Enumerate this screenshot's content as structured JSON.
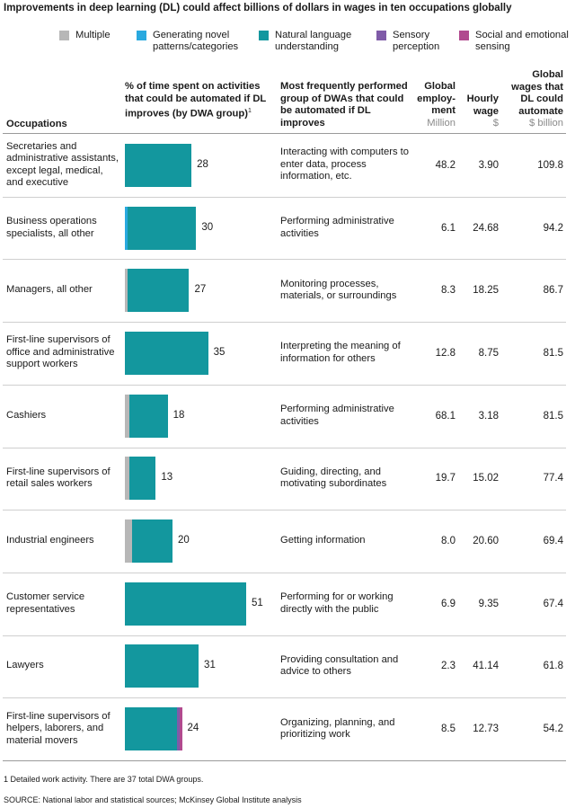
{
  "title": "Improvements in deep learning (DL) could affect billions of dollars in wages in ten occupations globally",
  "legend": [
    {
      "label": "Multiple",
      "color": "#b7b7b7"
    },
    {
      "label": "Generating novel patterns/categories",
      "color": "#29a9df"
    },
    {
      "label": "Natural language understanding",
      "color": "#13979e"
    },
    {
      "label": "Sensory perception",
      "color": "#7f5ba8"
    },
    {
      "label": "Social and emotional sensing",
      "color": "#b14a8f"
    }
  ],
  "columns": {
    "occupations": "Occupations",
    "pct_time": "% of time spent on activities that could be automated if DL improves (by DWA group)",
    "pct_time_sup": "1",
    "dwa": "Most frequently performed group of DWAs that could be automated if DL improves",
    "employment": "Global employ-ment",
    "employment_unit": "Million",
    "wage": "Hourly wage",
    "wage_unit": "$",
    "wages_total": "Global wages that DL could automate",
    "wages_total_unit": "$ billion"
  },
  "chart_data": {
    "type": "bar",
    "orientation": "horizontal",
    "stacked": true,
    "xlim": [
      0,
      51
    ],
    "categories": [
      "Secretaries and administrative assistants, except legal, medical, and executive",
      "Business operations specialists, all other",
      "Managers, all other",
      "First-line supervisors of office and administrative support workers",
      "Cashiers",
      "First-line supervisors of retail sales workers",
      "Industrial engineers",
      "Customer service representatives",
      "Lawyers",
      "First-line supervisors of helpers, laborers, and material movers"
    ],
    "series": [
      {
        "name": "Multiple",
        "values": [
          0,
          0,
          1,
          0,
          2,
          2,
          3,
          0,
          0,
          0
        ]
      },
      {
        "name": "Generating novel patterns/categories",
        "values": [
          0,
          1,
          0,
          0,
          0,
          0,
          0,
          0,
          0,
          0
        ]
      },
      {
        "name": "Natural language understanding",
        "values": [
          28,
          29,
          26,
          35,
          16,
          11,
          17,
          51,
          31,
          22
        ]
      },
      {
        "name": "Sensory perception",
        "values": [
          0,
          0,
          0,
          0,
          0,
          0,
          0,
          0,
          0,
          1
        ]
      },
      {
        "name": "Social and emotional sensing",
        "values": [
          0,
          0,
          0,
          0,
          0,
          0,
          0,
          0,
          0,
          1
        ]
      }
    ],
    "totals": [
      28,
      30,
      27,
      35,
      18,
      13,
      20,
      51,
      31,
      24
    ]
  },
  "rows": [
    {
      "occupation": "Secretaries and administrative assistants, except legal, medical, and executive",
      "dwa": "Interacting with computers to enter data, process information, etc.",
      "employment": "48.2",
      "wage": "3.90",
      "wages_total": "109.8"
    },
    {
      "occupation": "Business operations specialists, all other",
      "dwa": "Performing administrative activities",
      "employment": "6.1",
      "wage": "24.68",
      "wages_total": "94.2"
    },
    {
      "occupation": "Managers, all other",
      "dwa": "Monitoring processes, materials, or surroundings",
      "employment": "8.3",
      "wage": "18.25",
      "wages_total": "86.7"
    },
    {
      "occupation": "First-line supervisors of office and administrative support workers",
      "dwa": "Interpreting the meaning of information for others",
      "employment": "12.8",
      "wage": "8.75",
      "wages_total": "81.5"
    },
    {
      "occupation": "Cashiers",
      "dwa": "Performing administrative activities",
      "employment": "68.1",
      "wage": "3.18",
      "wages_total": "81.5"
    },
    {
      "occupation": "First-line supervisors of retail sales workers",
      "dwa": "Guiding, directing, and motivating subordinates",
      "employment": "19.7",
      "wage": "15.02",
      "wages_total": "77.4"
    },
    {
      "occupation": "Industrial engineers",
      "dwa": "Getting information",
      "employment": "8.0",
      "wage": "20.60",
      "wages_total": "69.4"
    },
    {
      "occupation": "Customer service representatives",
      "dwa": "Performing for or working directly with the public",
      "employment": "6.9",
      "wage": "9.35",
      "wages_total": "67.4"
    },
    {
      "occupation": "Lawyers",
      "dwa": "Providing consultation and advice to others",
      "employment": "2.3",
      "wage": "41.14",
      "wages_total": "61.8"
    },
    {
      "occupation": "First-line supervisors of helpers, laborers, and material movers",
      "dwa": "Organizing, planning, and prioritizing work",
      "employment": "8.5",
      "wage": "12.73",
      "wages_total": "54.2"
    }
  ],
  "footnote": "1  Detailed work activity. There are 37 total DWA groups.",
  "source": "SOURCE:  National labor and statistical sources; McKinsey Global Institute analysis"
}
